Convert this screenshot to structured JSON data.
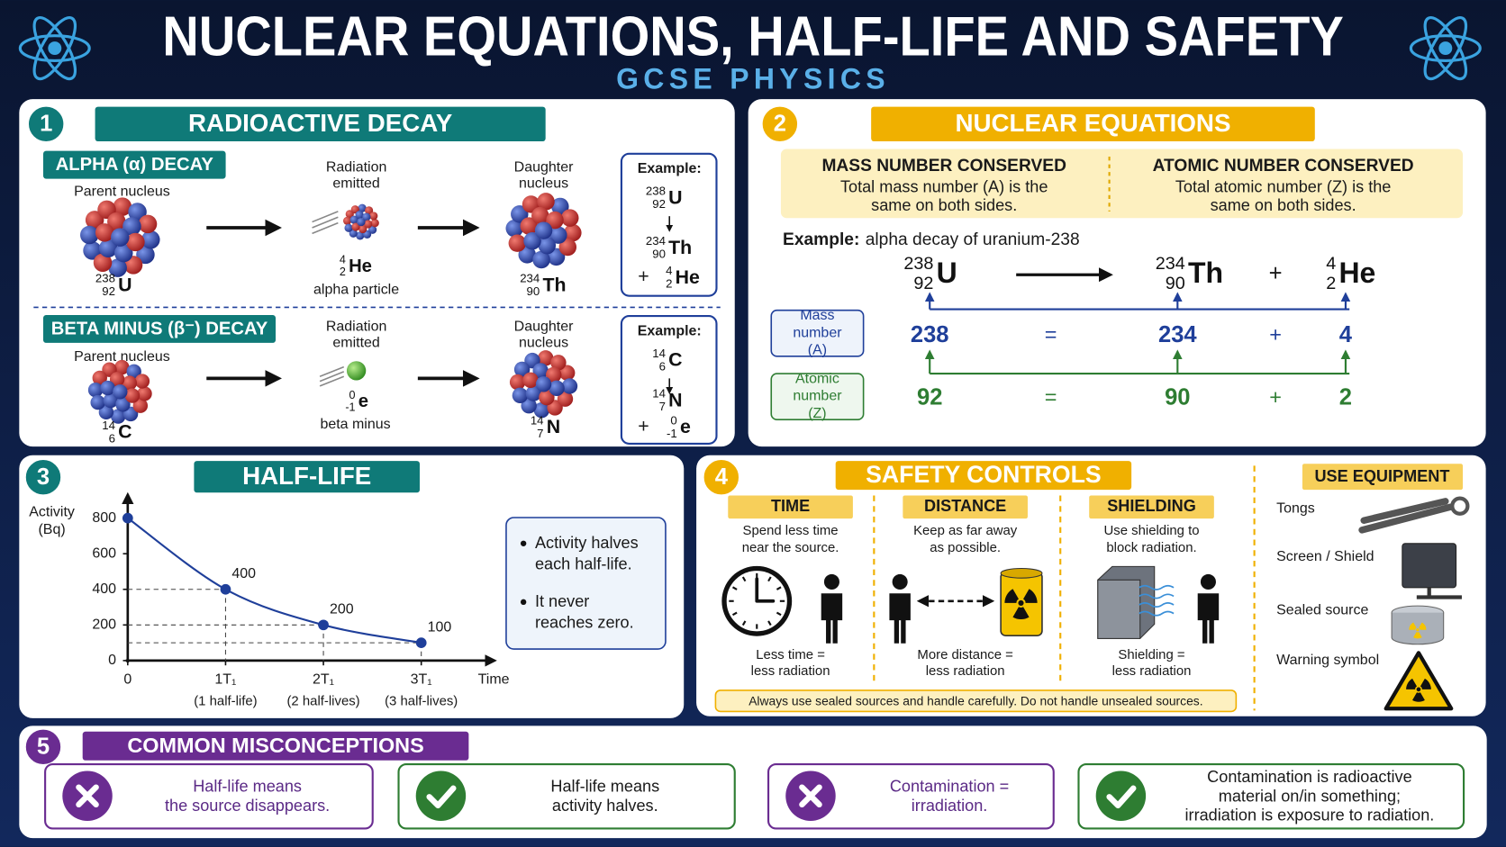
{
  "header": {
    "title": "NUCLEAR EQUATIONS, HALF-LIFE AND SAFETY",
    "subtitle": "GCSE PHYSICS"
  },
  "decay": {
    "number": 1,
    "title": "RADIOACTIVE DECAY",
    "parent_label": "Parent nucleus",
    "radiation_label": "Radiation emitted",
    "daughter_label": "Daughter nucleus",
    "example_label": "Example:",
    "plus": "+",
    "alpha": {
      "title": "ALPHA (α) DECAY",
      "parent": {
        "mass": 238,
        "atomic": 92,
        "symbol": "U"
      },
      "particle": {
        "mass": 4,
        "atomic": 2,
        "symbol": "He"
      },
      "particle_label": "alpha particle",
      "daughter": {
        "mass": 234,
        "atomic": 90,
        "symbol": "Th"
      }
    },
    "beta": {
      "title": "BETA MINUS (β⁻) DECAY",
      "parent": {
        "mass": 14,
        "atomic": 6,
        "symbol": "C"
      },
      "particle": {
        "mass": 0,
        "atomic": -1,
        "symbol": "e"
      },
      "particle_label": "beta minus",
      "daughter": {
        "mass": 14,
        "atomic": 7,
        "symbol": "N"
      }
    }
  },
  "equations": {
    "number": 2,
    "title": "NUCLEAR EQUATIONS",
    "mass_rule": {
      "title": "MASS NUMBER CONSERVED",
      "text": "Total mass number (A) is the same on both sides."
    },
    "atomic_rule": {
      "title": "ATOMIC NUMBER CONSERVED",
      "text": "Total atomic number (Z) is the same on both sides."
    },
    "example_label": "Example:",
    "example_text": "alpha decay of uranium-238",
    "reactant": {
      "mass": 238,
      "atomic": 92,
      "symbol": "U"
    },
    "product": {
      "mass": 234,
      "atomic": 90,
      "symbol": "Th"
    },
    "particle": {
      "mass": 4,
      "atomic": 2,
      "symbol": "He"
    },
    "plus": "+",
    "equals": "=",
    "mass_row": {
      "label": "Mass number (A)",
      "values": [
        238,
        234,
        4
      ]
    },
    "atomic_row": {
      "label": "Atomic number (Z)",
      "values": [
        92,
        90,
        2
      ]
    }
  },
  "half_life": {
    "number": 3,
    "title": "HALF-LIFE",
    "chart": {
      "type": "line",
      "y_label": "Activity (Bq)",
      "x_label": "Time",
      "x": [
        0,
        1,
        2,
        3
      ],
      "values": [
        800,
        400,
        200,
        100
      ],
      "color": "#1f3f9a",
      "xlim": [
        0,
        3.75
      ],
      "ylim": [
        0,
        900
      ],
      "yticks": [
        0,
        200,
        400,
        600,
        800
      ],
      "xticks": [
        0,
        {
          "value": 1,
          "label": "1T₁",
          "sublabel": "(1 half-life)"
        },
        {
          "value": 2,
          "label": "2T₁",
          "sublabel": "(2 half-lives)"
        },
        {
          "value": 3,
          "label": "3T₁",
          "sublabel": "(3 half-lives)"
        }
      ]
    },
    "notes": [
      "Activity halves each half-life.",
      "It never reaches zero."
    ]
  },
  "safety": {
    "number": 4,
    "title": "SAFETY CONTROLS",
    "controls": [
      {
        "title": "TIME",
        "text": "Spend less time near the source.",
        "result": "Less time = less radiation"
      },
      {
        "title": "DISTANCE",
        "text": "Keep as far away as possible.",
        "result": "More distance = less radiation"
      },
      {
        "title": "SHIELDING",
        "text": "Use shielding to block radiation.",
        "result": "Shielding = less radiation"
      }
    ],
    "note": "Always use sealed sources and handle carefully. Do not handle unsealed sources.",
    "equipment": {
      "title": "USE EQUIPMENT",
      "items": [
        "Tongs",
        "Screen / Shield",
        "Sealed source",
        "Warning symbol"
      ]
    }
  },
  "misconceptions": {
    "number": 5,
    "title": "COMMON MISCONCEPTIONS",
    "items": [
      {
        "lines": [
          "Half-life means",
          "the source disappears."
        ],
        "correct": false
      },
      {
        "lines": [
          "Half-life means",
          "activity halves."
        ],
        "correct": true
      },
      {
        "lines": [
          "Contamination =",
          "irradiation."
        ],
        "correct": false
      },
      {
        "lines": [
          "Contamination is radioactive",
          "material on/in something;",
          "irradiation is exposure to radiation."
        ],
        "correct": true
      }
    ]
  }
}
